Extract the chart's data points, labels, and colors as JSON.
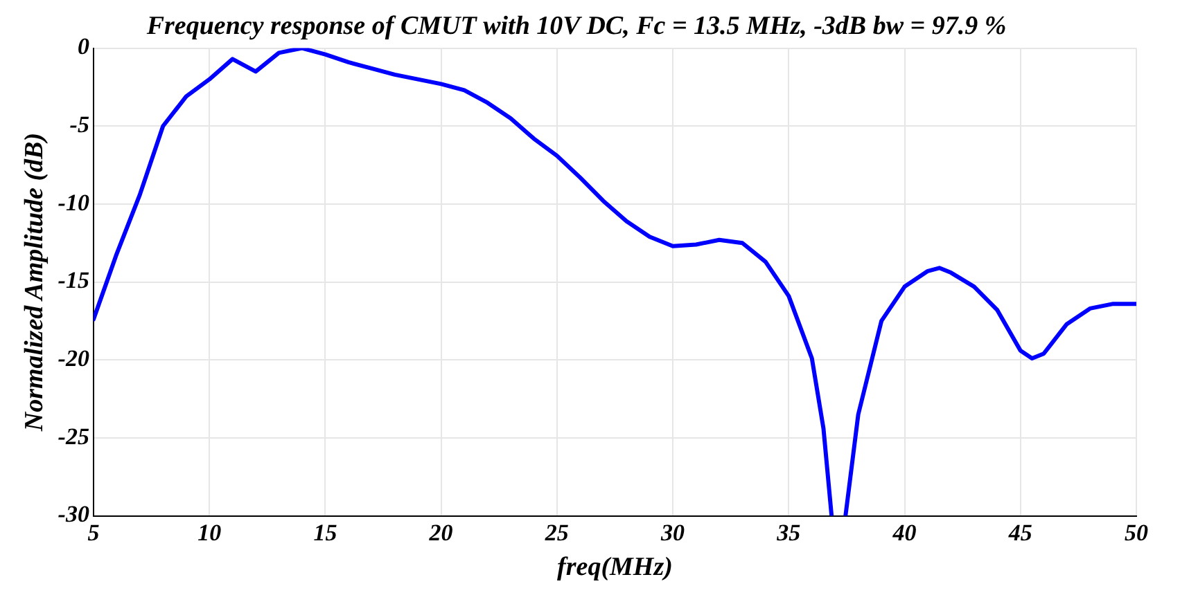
{
  "chart_data": {
    "type": "line",
    "title": "Frequency response of CMUT with 10V DC, Fc = 13.5 MHz, -3dB bw = 97.9 %",
    "xlabel": "freq(MHz)",
    "ylabel": "Normalized Amplitude (dB)",
    "x": [
      5,
      6,
      7,
      8,
      9,
      10,
      11,
      12,
      13,
      14,
      15,
      16,
      17,
      18,
      19,
      20,
      21,
      22,
      23,
      24,
      25,
      26,
      27,
      28,
      29,
      30,
      31,
      32,
      33,
      34,
      35,
      36,
      36.5,
      36.85,
      37.1,
      37.45,
      38,
      39,
      40,
      41,
      41.5,
      42,
      43,
      44,
      45,
      45.5,
      46,
      47,
      48,
      49,
      50
    ],
    "series": [
      {
        "color": "#0000ff",
        "values": [
          -17.4,
          -13.2,
          -9.4,
          -5.0,
          -3.1,
          -2.0,
          -0.7,
          -1.5,
          -0.3,
          0,
          -0.4,
          -0.9,
          -1.3,
          -1.7,
          -2.0,
          -2.3,
          -2.7,
          -3.5,
          -4.5,
          -5.8,
          -6.9,
          -8.3,
          -9.8,
          -11.1,
          -12.1,
          -12.7,
          -12.6,
          -12.3,
          -12.5,
          -13.7,
          -15.9,
          -19.9,
          -24.4,
          -30,
          null,
          -30,
          -23.5,
          -17.5,
          -15.3,
          -14.3,
          -14.1,
          -14.4,
          -15.3,
          -16.8,
          -19.4,
          -19.9,
          -19.6,
          -17.7,
          -16.7,
          -16.4,
          -16.4
        ]
      }
    ],
    "xlim": [
      5,
      50
    ],
    "xticks": [
      5,
      10,
      15,
      20,
      25,
      30,
      35,
      40,
      45,
      50
    ],
    "ylim": [
      -30,
      0
    ],
    "yticks": [
      -30,
      -25,
      -20,
      -15,
      -10,
      -5,
      0
    ],
    "grid": true,
    "legend": false,
    "marker": "none",
    "line_style": "solid"
  }
}
